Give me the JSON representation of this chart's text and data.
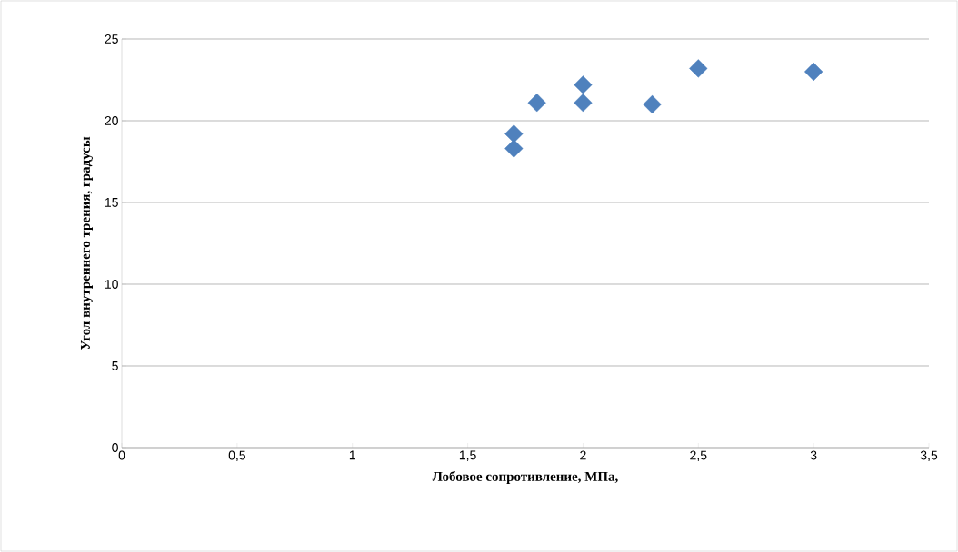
{
  "chart_data": {
    "type": "scatter",
    "xlabel": "Лобовое сопротивление, МПа,",
    "ylabel": "Угол внутреннего трения, градусы",
    "x": [
      1.7,
      1.7,
      1.8,
      2.0,
      2.0,
      2.3,
      2.5,
      3.0
    ],
    "values": [
      19.2,
      18.3,
      21.1,
      22.2,
      21.1,
      21.0,
      23.2,
      23.0
    ],
    "color": "#4f81bd",
    "marker": "diamond",
    "xlim": [
      0,
      3.5
    ],
    "xticks": [
      {
        "value": 0,
        "label": "0"
      },
      {
        "value": 0.5,
        "label": "0,5"
      },
      {
        "value": 1,
        "label": "1"
      },
      {
        "value": 1.5,
        "label": "1,5"
      },
      {
        "value": 2,
        "label": "2"
      },
      {
        "value": 2.5,
        "label": "2,5"
      },
      {
        "value": 3,
        "label": "3"
      },
      {
        "value": 3.5,
        "label": "3,5"
      }
    ],
    "ylim": [
      0,
      25
    ],
    "yticks": [
      0,
      5,
      10,
      15,
      20,
      25
    ],
    "grid": "y"
  }
}
